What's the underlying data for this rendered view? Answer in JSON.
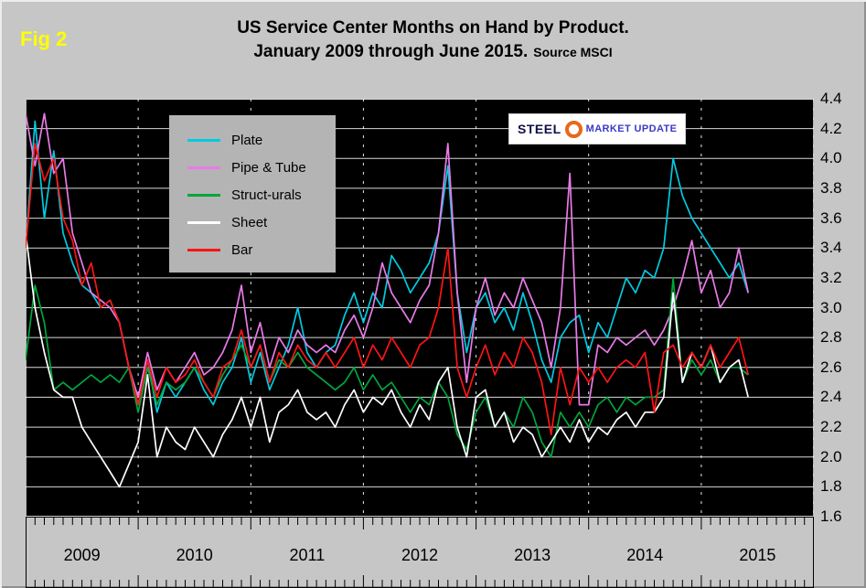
{
  "fig_label": "Fig 2",
  "title": {
    "line1": "US Service Center Months on Hand by Product.",
    "line2": "January 2009 through June 2015.",
    "source": "Source MSCI"
  },
  "logo": {
    "steel": "STEEL",
    "market_update": "MARKET UPDATE"
  },
  "chart_data": {
    "type": "line",
    "title": "US Service Center Months on Hand by Product. January 2009 through June 2015.",
    "source": "MSCI",
    "x_start": "2009-01",
    "x_end": "2015-06",
    "months_on_axis": 84,
    "ylim": [
      1.6,
      4.4
    ],
    "y_tick_step": 0.2,
    "grid": true,
    "legend_position": "upper-left",
    "plot_background": "#000000",
    "grid_color": "#ffffff",
    "year_labels": [
      "2009",
      "2010",
      "2011",
      "2012",
      "2013",
      "2014",
      "2015"
    ],
    "series": [
      {
        "name": "Plate",
        "color": "#00cbe0",
        "values": [
          3.4,
          4.25,
          3.6,
          4.05,
          3.5,
          3.3,
          3.15,
          3.1,
          3.0,
          3.05,
          2.9,
          2.6,
          2.35,
          2.65,
          2.3,
          2.5,
          2.4,
          2.5,
          2.6,
          2.45,
          2.35,
          2.5,
          2.6,
          2.8,
          2.5,
          2.7,
          2.45,
          2.6,
          2.75,
          3.0,
          2.7,
          2.6,
          2.7,
          2.75,
          2.95,
          3.1,
          2.9,
          3.1,
          3.0,
          3.35,
          3.25,
          3.1,
          3.2,
          3.3,
          3.5,
          3.95,
          3.1,
          2.7,
          3.0,
          3.1,
          2.9,
          3.0,
          2.85,
          3.1,
          2.9,
          2.65,
          2.5,
          2.8,
          2.9,
          2.95,
          2.7,
          2.9,
          2.8,
          3.0,
          3.2,
          3.1,
          3.25,
          3.2,
          3.4,
          4.0,
          3.75,
          3.6,
          3.5,
          3.4,
          3.3,
          3.2,
          3.3,
          3.1
        ]
      },
      {
        "name": "Pipe & Tube",
        "color": "#ea7ae8",
        "values": [
          4.3,
          3.95,
          4.3,
          3.9,
          4.0,
          3.5,
          3.3,
          3.1,
          3.05,
          3.0,
          2.9,
          2.6,
          2.4,
          2.7,
          2.45,
          2.6,
          2.5,
          2.6,
          2.7,
          2.55,
          2.6,
          2.7,
          2.85,
          3.15,
          2.7,
          2.9,
          2.6,
          2.8,
          2.7,
          2.85,
          2.75,
          2.7,
          2.75,
          2.7,
          2.85,
          2.95,
          2.8,
          3.0,
          3.3,
          3.1,
          3.0,
          2.9,
          3.05,
          3.15,
          3.5,
          4.1,
          3.1,
          2.5,
          3.0,
          3.2,
          2.95,
          3.1,
          3.0,
          3.2,
          3.05,
          2.9,
          2.6,
          3.0,
          3.9,
          2.35,
          2.35,
          2.75,
          2.7,
          2.8,
          2.75,
          2.8,
          2.85,
          2.75,
          2.85,
          3.0,
          3.2,
          3.45,
          3.1,
          3.25,
          3.0,
          3.1,
          3.4,
          3.1
        ]
      },
      {
        "name": "Struct-urals",
        "color": "#00a63c",
        "values": [
          2.65,
          3.15,
          2.9,
          2.45,
          2.5,
          2.45,
          2.5,
          2.55,
          2.5,
          2.55,
          2.5,
          2.6,
          2.3,
          2.6,
          2.35,
          2.5,
          2.45,
          2.5,
          2.6,
          2.5,
          2.4,
          2.55,
          2.65,
          2.75,
          2.6,
          2.75,
          2.5,
          2.65,
          2.6,
          2.7,
          2.6,
          2.55,
          2.5,
          2.45,
          2.5,
          2.6,
          2.45,
          2.55,
          2.45,
          2.5,
          2.4,
          2.3,
          2.4,
          2.35,
          2.5,
          2.4,
          2.15,
          2.05,
          2.3,
          2.4,
          2.2,
          2.3,
          2.2,
          2.4,
          2.3,
          2.1,
          2.0,
          2.3,
          2.2,
          2.3,
          2.2,
          2.35,
          2.4,
          2.3,
          2.4,
          2.35,
          2.4,
          2.4,
          2.45,
          3.2,
          2.5,
          2.65,
          2.55,
          2.65,
          2.5,
          2.6,
          2.6,
          2.55
        ]
      },
      {
        "name": "Sheet",
        "color": "#ffffff",
        "values": [
          3.5,
          3.0,
          2.7,
          2.45,
          2.4,
          2.4,
          2.2,
          2.1,
          2.0,
          1.9,
          1.8,
          1.95,
          2.1,
          2.55,
          2.0,
          2.2,
          2.1,
          2.05,
          2.2,
          2.1,
          2.0,
          2.15,
          2.25,
          2.4,
          2.2,
          2.4,
          2.1,
          2.3,
          2.35,
          2.45,
          2.3,
          2.25,
          2.3,
          2.2,
          2.35,
          2.45,
          2.3,
          2.4,
          2.35,
          2.45,
          2.3,
          2.2,
          2.35,
          2.25,
          2.5,
          2.6,
          2.2,
          2.0,
          2.4,
          2.45,
          2.2,
          2.3,
          2.1,
          2.2,
          2.15,
          2.0,
          2.1,
          2.2,
          2.1,
          2.25,
          2.1,
          2.2,
          2.15,
          2.25,
          2.3,
          2.2,
          2.3,
          2.3,
          2.4,
          3.1,
          2.5,
          2.7,
          2.6,
          2.75,
          2.5,
          2.6,
          2.65,
          2.4
        ]
      },
      {
        "name": "Bar",
        "color": "#ff1414",
        "values": [
          3.4,
          4.1,
          3.85,
          4.0,
          3.6,
          3.45,
          3.15,
          3.3,
          3.0,
          3.05,
          2.9,
          2.6,
          2.35,
          2.65,
          2.4,
          2.6,
          2.5,
          2.55,
          2.65,
          2.5,
          2.4,
          2.6,
          2.65,
          2.85,
          2.6,
          2.75,
          2.5,
          2.7,
          2.6,
          2.75,
          2.65,
          2.6,
          2.7,
          2.6,
          2.7,
          2.8,
          2.6,
          2.75,
          2.65,
          2.8,
          2.7,
          2.6,
          2.75,
          2.8,
          3.0,
          3.4,
          2.6,
          2.4,
          2.6,
          2.75,
          2.55,
          2.7,
          2.6,
          2.8,
          2.7,
          2.5,
          2.15,
          2.6,
          2.35,
          2.6,
          2.5,
          2.6,
          2.5,
          2.6,
          2.65,
          2.6,
          2.7,
          2.3,
          2.7,
          2.75,
          2.6,
          2.7,
          2.6,
          2.75,
          2.6,
          2.7,
          2.8,
          2.55
        ]
      }
    ]
  }
}
